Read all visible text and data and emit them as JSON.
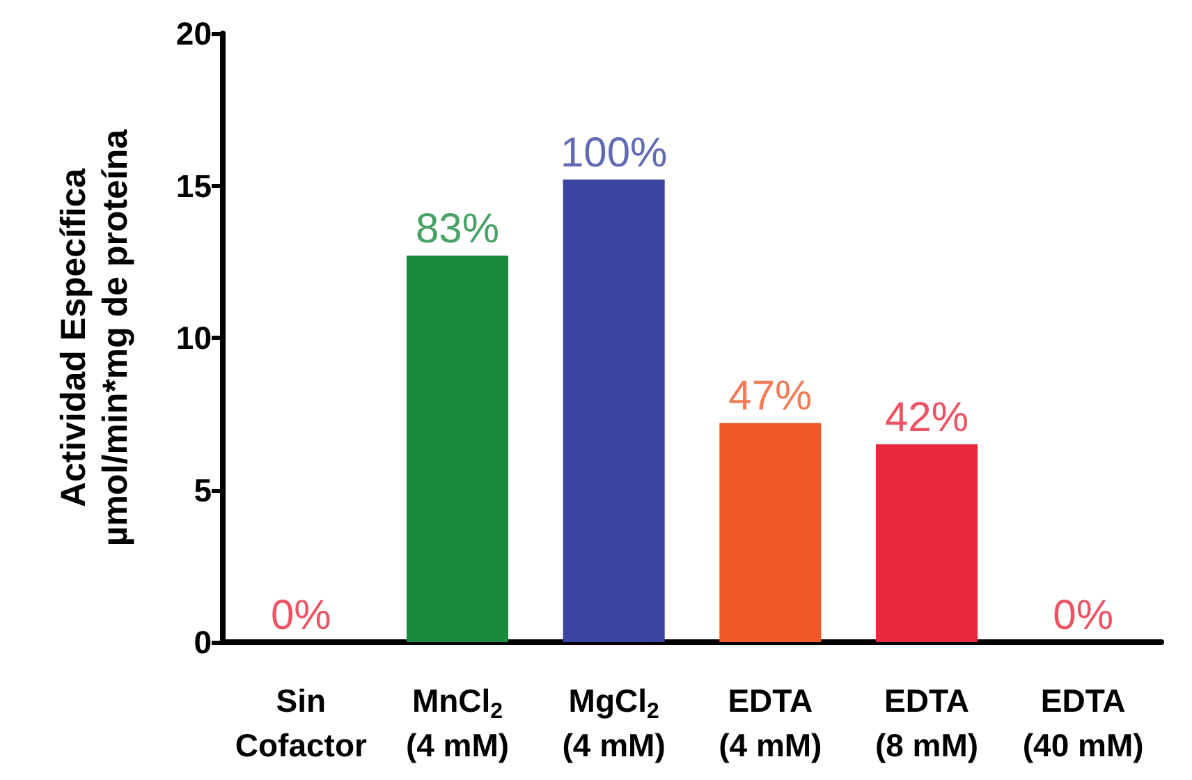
{
  "chart_data": {
    "type": "bar",
    "ylabel": "Actividad Específica\nµmol/min*mg de proteína",
    "categories": [
      "Sin\nCofactor",
      "MnCl$_{2}$\n(4 mM)",
      "MgCl$_{2}$\n(4 mM)",
      "EDTA\n(4 mM)",
      "EDTA\n(8 mM)",
      "EDTA\n(40 mM)"
    ],
    "values": [
      0,
      12.7,
      15.2,
      7.2,
      6.5,
      0
    ],
    "colors": [
      "#e8283c",
      "#1a8a3e",
      "#3a45a0",
      "#f05a2a",
      "#e8283c",
      "#e8283c"
    ],
    "annotations": [
      {
        "text": "0%",
        "x": "Sin\nCofactor",
        "y": 0
      },
      {
        "text": "83%",
        "x": "MnCl$_{2}$\n(4 mM)",
        "y": 12.7
      },
      {
        "text": "100%",
        "x": "MgCl$_{2}$\n(4 mM)",
        "y": 15.2
      },
      {
        "text": "47%",
        "x": "EDTA\n(4 mM)",
        "y": 7.2
      },
      {
        "text": "42%",
        "x": "EDTA\n(8 mM)",
        "y": 6.5
      },
      {
        "text": "0%",
        "x": "EDTA\n(40 mM)",
        "y": 0
      }
    ],
    "ylim": [
      0,
      20
    ],
    "yticks": [
      0,
      5,
      10,
      15,
      20
    ],
    "grid": false
  }
}
